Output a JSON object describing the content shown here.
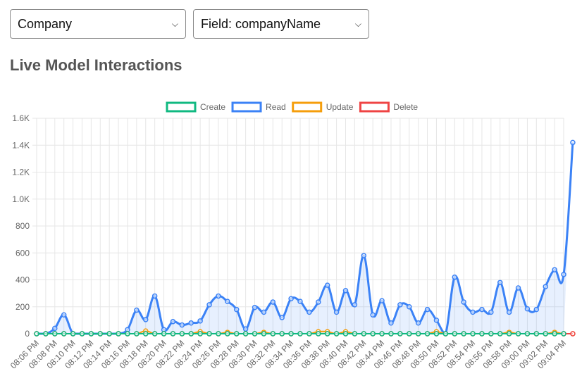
{
  "filters": {
    "company_value": "Company",
    "field_value": "Field: companyName"
  },
  "heading": "Live Model Interactions",
  "chart_data": {
    "type": "line",
    "title": "",
    "xlabel": "",
    "ylabel": "",
    "ylim": [
      0,
      1600
    ],
    "yticks": [
      "0",
      "200",
      "400",
      "600",
      "800",
      "1.0K",
      "1.2K",
      "1.4K",
      "1.6K"
    ],
    "x_tick_labels": [
      "08:06 PM",
      "08:08 PM",
      "08:10 PM",
      "08:12 PM",
      "08:14 PM",
      "08:16 PM",
      "08:18 PM",
      "08:20 PM",
      "08:22 PM",
      "08:24 PM",
      "08:26 PM",
      "08:28 PM",
      "08:30 PM",
      "08:32 PM",
      "08:34 PM",
      "08:36 PM",
      "08:38 PM",
      "08:40 PM",
      "08:42 PM",
      "08:44 PM",
      "08:46 PM",
      "08:48 PM",
      "08:50 PM",
      "08:52 PM",
      "08:54 PM",
      "08:56 PM",
      "08:58 PM",
      "09:00 PM",
      "09:02 PM",
      "09:04 PM"
    ],
    "grid": true,
    "legend_position": "top-center",
    "series": [
      {
        "name": "Create",
        "color": "#10b981",
        "values": [
          0,
          0,
          0,
          0,
          0,
          0,
          0,
          0,
          0,
          0,
          0,
          0,
          0,
          0,
          0,
          0,
          0,
          0,
          0,
          0,
          0,
          0,
          0,
          0,
          0,
          0,
          0,
          0,
          0,
          0,
          0,
          0,
          0,
          0,
          0,
          0,
          0,
          0,
          0,
          0,
          0,
          0,
          0,
          0,
          0,
          0,
          0,
          0,
          0,
          0,
          0,
          0,
          0,
          0,
          0,
          0,
          0,
          0,
          0
        ]
      },
      {
        "name": "Read",
        "color": "#3b82f6",
        "values": [
          0,
          0,
          40,
          140,
          0,
          0,
          0,
          0,
          0,
          0,
          30,
          175,
          105,
          280,
          30,
          90,
          65,
          80,
          95,
          215,
          280,
          240,
          180,
          35,
          195,
          160,
          235,
          120,
          260,
          240,
          160,
          235,
          360,
          160,
          320,
          215,
          580,
          140,
          245,
          80,
          215,
          200,
          80,
          180,
          100,
          0,
          420,
          235,
          160,
          180,
          160,
          380,
          160,
          340,
          185,
          180,
          350,
          475,
          440,
          1420
        ]
      },
      {
        "name": "Update",
        "color": "#f59e0b",
        "values": [
          0,
          0,
          0,
          0,
          0,
          0,
          0,
          0,
          0,
          0,
          0,
          0,
          20,
          0,
          0,
          0,
          0,
          0,
          15,
          0,
          0,
          10,
          0,
          0,
          0,
          10,
          0,
          0,
          0,
          0,
          0,
          15,
          15,
          0,
          15,
          0,
          0,
          0,
          0,
          0,
          0,
          0,
          0,
          0,
          15,
          0,
          0,
          0,
          0,
          0,
          0,
          0,
          10,
          0,
          0,
          0,
          0,
          10,
          0,
          0
        ]
      },
      {
        "name": "Delete",
        "color": "#ef4444",
        "values": [
          0,
          0,
          0,
          0,
          0,
          0,
          0,
          0,
          0,
          0,
          0,
          0,
          0,
          0,
          0,
          0,
          0,
          0,
          0,
          0,
          0,
          0,
          0,
          0,
          0,
          0,
          0,
          0,
          0,
          0,
          0,
          0,
          0,
          0,
          0,
          0,
          0,
          0,
          0,
          0,
          0,
          0,
          0,
          0,
          0,
          0,
          0,
          0,
          0,
          0,
          0,
          0,
          0,
          0,
          0,
          0,
          0,
          0,
          0,
          0
        ]
      }
    ]
  }
}
